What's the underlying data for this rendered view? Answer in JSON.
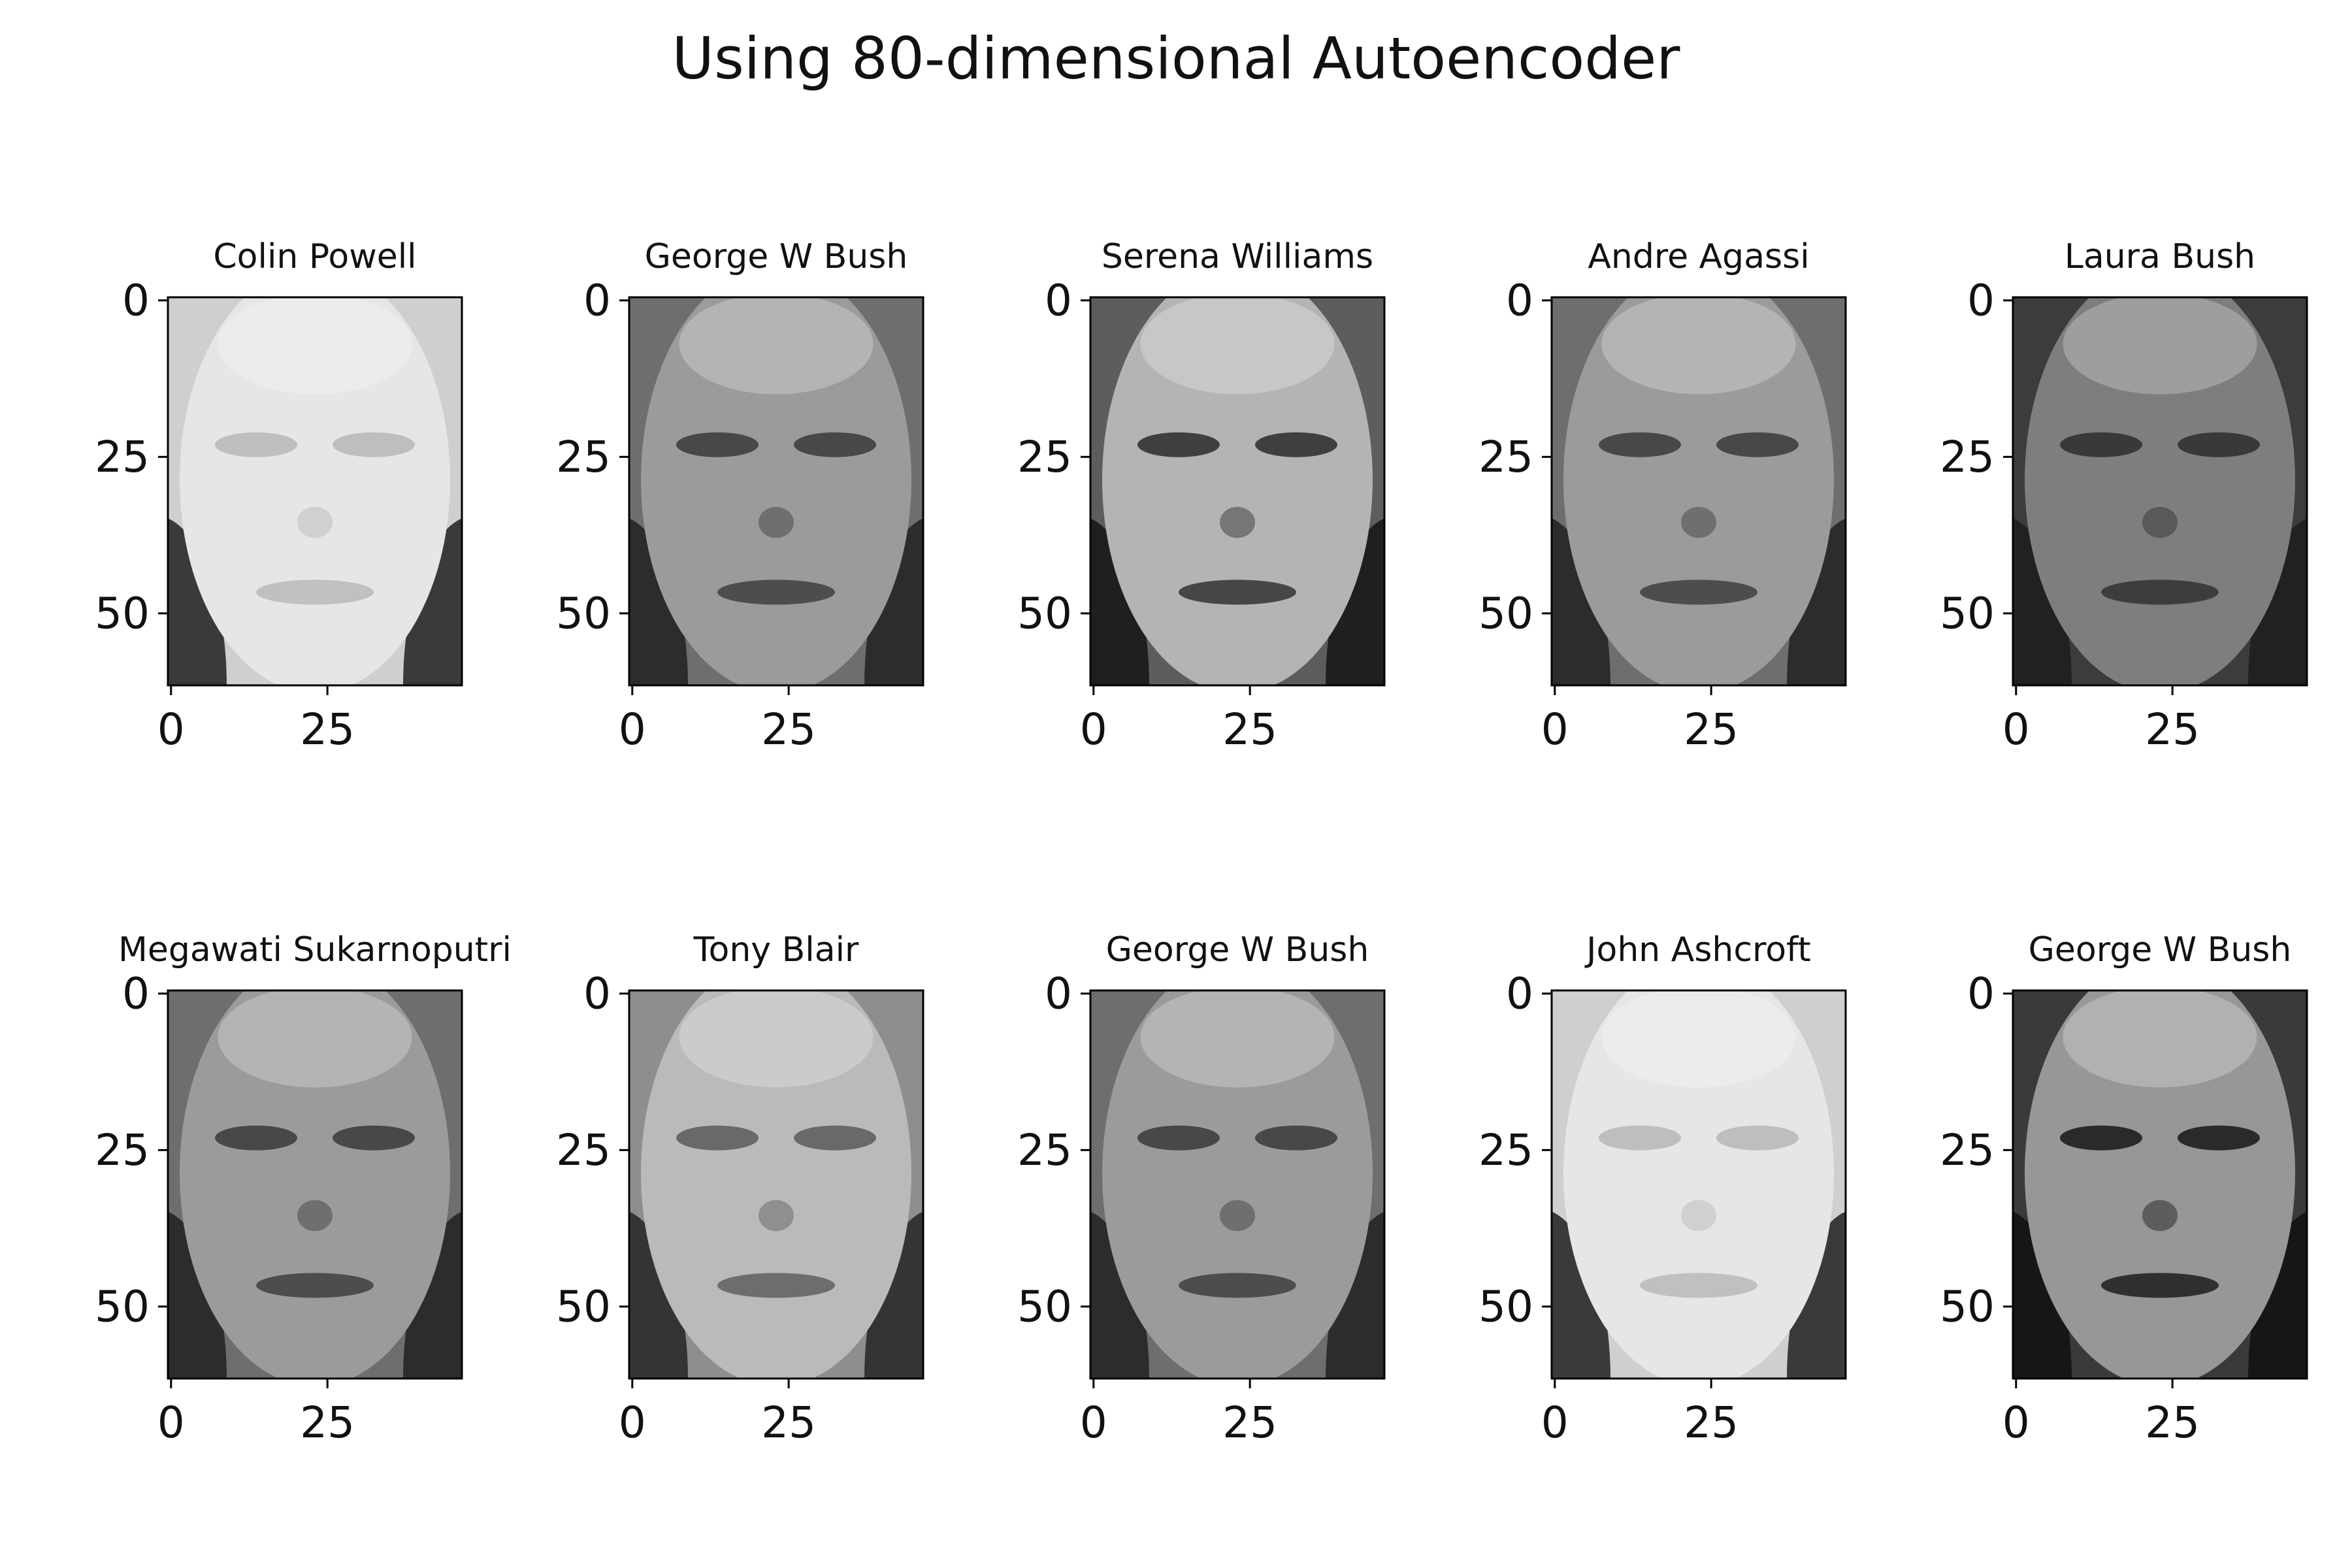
{
  "figure_title": "Using 80-dimensional Autoencoder",
  "colors": {
    "axis": "#000000",
    "text": "#111111",
    "background": "#ffffff"
  },
  "chart_data": {
    "type": "image_grid",
    "layout": {
      "rows": 2,
      "cols": 5
    },
    "image_shape": [
      62,
      47
    ],
    "colormap": "gray",
    "x_ticks": [
      0,
      25
    ],
    "y_ticks": [
      0,
      25,
      50
    ],
    "panels": [
      {
        "title": "Colin Powell",
        "tone": "light"
      },
      {
        "title": "George W Bush",
        "tone": "medium"
      },
      {
        "title": "Serena Williams",
        "tone": "contrast"
      },
      {
        "title": "Andre Agassi",
        "tone": "medium"
      },
      {
        "title": "Laura Bush",
        "tone": "dark"
      },
      {
        "title": "Megawati Sukarnoputri",
        "tone": "medium"
      },
      {
        "title": "Tony Blair",
        "tone": "medium-light"
      },
      {
        "title": "George W Bush",
        "tone": "medium"
      },
      {
        "title": "John Ashcroft",
        "tone": "light"
      },
      {
        "title": "George W Bush",
        "tone": "dark-contrast"
      }
    ]
  }
}
